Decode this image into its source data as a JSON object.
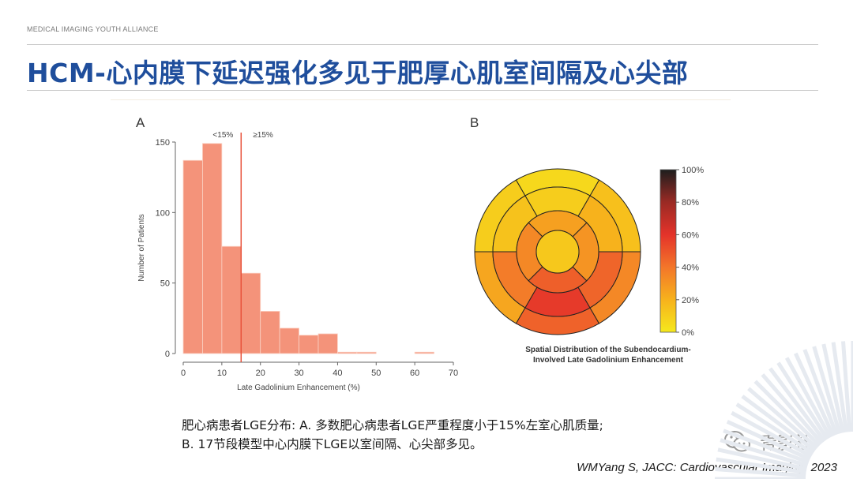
{
  "header": {
    "org": "MEDICAL IMAGING YOUTH ALLIANCE",
    "title": "HCM-心内膜下延迟强化多见于肥厚心肌室间隔及心尖部"
  },
  "caption": {
    "line1": "肥心病患者LGE分布: A. 多数肥心病患者LGE严重程度小于15%左室心肌质量;",
    "line2": "B. 17节段模型中心内膜下LGE以室间隔、心尖部多见。"
  },
  "citation": "WMYang S, JACC: Cardiovascular Imaging. 2023",
  "watermark": {
    "label": "青影社",
    "icon": "wechat-icon"
  },
  "colors": {
    "title": "#1f4e9c",
    "bar": "#f4937a",
    "cutoff": "#e8513a"
  },
  "chart_data": [
    {
      "panel": "A",
      "type": "bar",
      "xlabel": "Late Gadolinium Enhancement (%)",
      "ylabel": "Number of Patients",
      "xlim": [
        0,
        70
      ],
      "ylim": [
        0,
        150
      ],
      "xticks": [
        0,
        10,
        20,
        30,
        40,
        50,
        60,
        70
      ],
      "yticks": [
        0,
        50,
        100,
        150
      ],
      "bin_width": 5,
      "bins": [
        {
          "x0": 0,
          "value": 137
        },
        {
          "x0": 5,
          "value": 149
        },
        {
          "x0": 10,
          "value": 76
        },
        {
          "x0": 15,
          "value": 57
        },
        {
          "x0": 20,
          "value": 30
        },
        {
          "x0": 25,
          "value": 18
        },
        {
          "x0": 30,
          "value": 13
        },
        {
          "x0": 35,
          "value": 14
        },
        {
          "x0": 40,
          "value": 1
        },
        {
          "x0": 45,
          "value": 1
        },
        {
          "x0": 60,
          "value": 1
        }
      ],
      "cutoff": {
        "x": 15,
        "label_left": "<15%",
        "label_right": "≥15%"
      }
    },
    {
      "panel": "B",
      "type": "heatmap",
      "title": "Spatial Distribution of the Subendocardium-Involved Late Gadolinium Enhancement",
      "colorbar": {
        "min": 0,
        "max": 100,
        "ticks": [
          "0%",
          "20%",
          "40%",
          "60%",
          "80%",
          "100%"
        ]
      },
      "segments": [
        {
          "segment": 1,
          "value": 10
        },
        {
          "segment": 2,
          "value": 24
        },
        {
          "segment": 3,
          "value": 46
        },
        {
          "segment": 4,
          "value": 34
        },
        {
          "segment": 5,
          "value": 15
        },
        {
          "segment": 6,
          "value": 6
        },
        {
          "segment": 7,
          "value": 14
        },
        {
          "segment": 8,
          "value": 38
        },
        {
          "segment": 9,
          "value": 58
        },
        {
          "segment": 10,
          "value": 45
        },
        {
          "segment": 11,
          "value": 20
        },
        {
          "segment": 12,
          "value": 10
        },
        {
          "segment": 13,
          "value": 34
        },
        {
          "segment": 14,
          "value": 47
        },
        {
          "segment": 15,
          "value": 30
        },
        {
          "segment": 16,
          "value": 26
        },
        {
          "segment": 17,
          "value": 12
        }
      ]
    }
  ]
}
